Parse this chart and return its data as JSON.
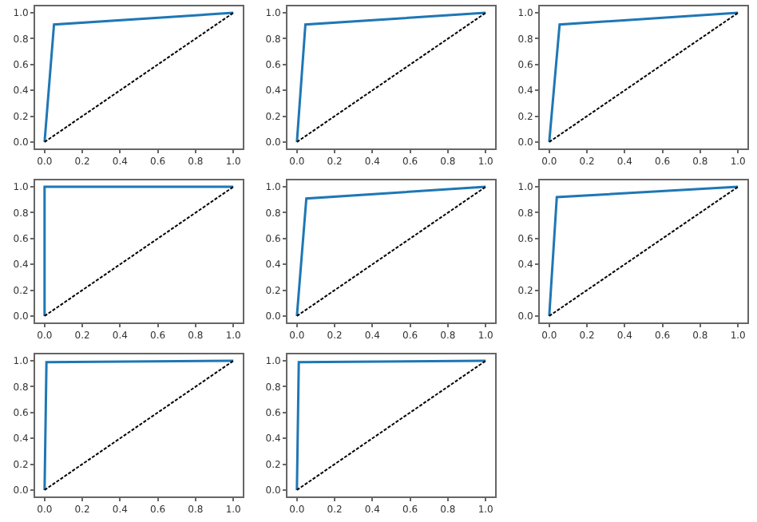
{
  "chart_data": [
    {
      "type": "line",
      "series": [
        {
          "color": "#1f77b4",
          "x": [
            0,
            0.05,
            1
          ],
          "values": [
            0,
            0.91,
            1
          ],
          "line_style": "solid"
        },
        {
          "color": "#000000",
          "x": [
            0,
            1
          ],
          "values": [
            0,
            1
          ],
          "line_style": "dashed"
        }
      ],
      "xlim": [
        -0.05,
        1.05
      ],
      "ylim": [
        -0.05,
        1.05
      ],
      "xticks": [
        {
          "value": 0,
          "label": "0.0"
        },
        {
          "value": 0.2,
          "label": "0.2"
        },
        {
          "value": 0.4,
          "label": "0.4"
        },
        {
          "value": 0.6,
          "label": "0.6"
        },
        {
          "value": 0.8,
          "label": "0.8"
        },
        {
          "value": 1,
          "label": "1.0"
        }
      ],
      "yticks": [
        {
          "value": 0,
          "label": "0.0"
        },
        {
          "value": 0.2,
          "label": "0.2"
        },
        {
          "value": 0.4,
          "label": "0.4"
        },
        {
          "value": 0.6,
          "label": "0.6"
        },
        {
          "value": 0.8,
          "label": "0.8"
        },
        {
          "value": 1,
          "label": "1.0"
        }
      ]
    },
    {
      "type": "line",
      "series": [
        {
          "color": "#1f77b4",
          "x": [
            0,
            0.045,
            1
          ],
          "values": [
            0,
            0.91,
            1
          ],
          "line_style": "solid"
        },
        {
          "color": "#000000",
          "x": [
            0,
            1
          ],
          "values": [
            0,
            1
          ],
          "line_style": "dashed"
        }
      ],
      "xlim": [
        -0.05,
        1.05
      ],
      "ylim": [
        -0.05,
        1.05
      ],
      "xticks": [
        {
          "value": 0,
          "label": "0.0"
        },
        {
          "value": 0.2,
          "label": "0.2"
        },
        {
          "value": 0.4,
          "label": "0.4"
        },
        {
          "value": 0.6,
          "label": "0.6"
        },
        {
          "value": 0.8,
          "label": "0.8"
        },
        {
          "value": 1,
          "label": "1.0"
        }
      ],
      "yticks": [
        {
          "value": 0,
          "label": "0.0"
        },
        {
          "value": 0.2,
          "label": "0.2"
        },
        {
          "value": 0.4,
          "label": "0.4"
        },
        {
          "value": 0.6,
          "label": "0.6"
        },
        {
          "value": 0.8,
          "label": "0.8"
        },
        {
          "value": 1,
          "label": "1.0"
        }
      ]
    },
    {
      "type": "line",
      "series": [
        {
          "color": "#1f77b4",
          "x": [
            0,
            0.055,
            1
          ],
          "values": [
            0,
            0.91,
            1
          ],
          "line_style": "solid"
        },
        {
          "color": "#000000",
          "x": [
            0,
            1
          ],
          "values": [
            0,
            1
          ],
          "line_style": "dashed"
        }
      ],
      "xlim": [
        -0.05,
        1.05
      ],
      "ylim": [
        -0.05,
        1.05
      ],
      "xticks": [
        {
          "value": 0,
          "label": "0.0"
        },
        {
          "value": 0.2,
          "label": "0.2"
        },
        {
          "value": 0.4,
          "label": "0.4"
        },
        {
          "value": 0.6,
          "label": "0.6"
        },
        {
          "value": 0.8,
          "label": "0.8"
        },
        {
          "value": 1,
          "label": "1.0"
        }
      ],
      "yticks": [
        {
          "value": 0,
          "label": "0.0"
        },
        {
          "value": 0.2,
          "label": "0.2"
        },
        {
          "value": 0.4,
          "label": "0.4"
        },
        {
          "value": 0.6,
          "label": "0.6"
        },
        {
          "value": 0.8,
          "label": "0.8"
        },
        {
          "value": 1,
          "label": "1.0"
        }
      ]
    },
    {
      "type": "line",
      "series": [
        {
          "color": "#1f77b4",
          "x": [
            0,
            0,
            1
          ],
          "values": [
            0,
            1,
            1
          ],
          "line_style": "solid"
        },
        {
          "color": "#000000",
          "x": [
            0,
            1
          ],
          "values": [
            0,
            1
          ],
          "line_style": "dashed"
        }
      ],
      "xlim": [
        -0.05,
        1.05
      ],
      "ylim": [
        -0.05,
        1.05
      ],
      "xticks": [
        {
          "value": 0,
          "label": "0.0"
        },
        {
          "value": 0.2,
          "label": "0.2"
        },
        {
          "value": 0.4,
          "label": "0.4"
        },
        {
          "value": 0.6,
          "label": "0.6"
        },
        {
          "value": 0.8,
          "label": "0.8"
        },
        {
          "value": 1,
          "label": "1.0"
        }
      ],
      "yticks": [
        {
          "value": 0,
          "label": "0.0"
        },
        {
          "value": 0.2,
          "label": "0.2"
        },
        {
          "value": 0.4,
          "label": "0.4"
        },
        {
          "value": 0.6,
          "label": "0.6"
        },
        {
          "value": 0.8,
          "label": "0.8"
        },
        {
          "value": 1,
          "label": "1.0"
        }
      ]
    },
    {
      "type": "line",
      "series": [
        {
          "color": "#1f77b4",
          "x": [
            0,
            0.05,
            1
          ],
          "values": [
            0,
            0.91,
            1
          ],
          "line_style": "solid"
        },
        {
          "color": "#000000",
          "x": [
            0,
            1
          ],
          "values": [
            0,
            1
          ],
          "line_style": "dashed"
        }
      ],
      "xlim": [
        -0.05,
        1.05
      ],
      "ylim": [
        -0.05,
        1.05
      ],
      "xticks": [
        {
          "value": 0,
          "label": "0.0"
        },
        {
          "value": 0.2,
          "label": "0.2"
        },
        {
          "value": 0.4,
          "label": "0.4"
        },
        {
          "value": 0.6,
          "label": "0.6"
        },
        {
          "value": 0.8,
          "label": "0.8"
        },
        {
          "value": 1,
          "label": "1.0"
        }
      ],
      "yticks": [
        {
          "value": 0,
          "label": "0.0"
        },
        {
          "value": 0.2,
          "label": "0.2"
        },
        {
          "value": 0.4,
          "label": "0.4"
        },
        {
          "value": 0.6,
          "label": "0.6"
        },
        {
          "value": 0.8,
          "label": "0.8"
        },
        {
          "value": 1,
          "label": "1.0"
        }
      ]
    },
    {
      "type": "line",
      "series": [
        {
          "color": "#1f77b4",
          "x": [
            0,
            0.04,
            1
          ],
          "values": [
            0,
            0.92,
            1
          ],
          "line_style": "solid"
        },
        {
          "color": "#000000",
          "x": [
            0,
            1
          ],
          "values": [
            0,
            1
          ],
          "line_style": "dashed"
        }
      ],
      "xlim": [
        -0.05,
        1.05
      ],
      "ylim": [
        -0.05,
        1.05
      ],
      "xticks": [
        {
          "value": 0,
          "label": "0.0"
        },
        {
          "value": 0.2,
          "label": "0.2"
        },
        {
          "value": 0.4,
          "label": "0.4"
        },
        {
          "value": 0.6,
          "label": "0.6"
        },
        {
          "value": 0.8,
          "label": "0.8"
        },
        {
          "value": 1,
          "label": "1.0"
        }
      ],
      "yticks": [
        {
          "value": 0,
          "label": "0.0"
        },
        {
          "value": 0.2,
          "label": "0.2"
        },
        {
          "value": 0.4,
          "label": "0.4"
        },
        {
          "value": 0.6,
          "label": "0.6"
        },
        {
          "value": 0.8,
          "label": "0.8"
        },
        {
          "value": 1,
          "label": "1.0"
        }
      ]
    },
    {
      "type": "line",
      "series": [
        {
          "color": "#1f77b4",
          "x": [
            0,
            0.01,
            1
          ],
          "values": [
            0,
            0.99,
            1
          ],
          "line_style": "solid"
        },
        {
          "color": "#000000",
          "x": [
            0,
            1
          ],
          "values": [
            0,
            1
          ],
          "line_style": "dashed"
        }
      ],
      "xlim": [
        -0.05,
        1.05
      ],
      "ylim": [
        -0.05,
        1.05
      ],
      "xticks": [
        {
          "value": 0,
          "label": "0.0"
        },
        {
          "value": 0.2,
          "label": "0.2"
        },
        {
          "value": 0.4,
          "label": "0.4"
        },
        {
          "value": 0.6,
          "label": "0.6"
        },
        {
          "value": 0.8,
          "label": "0.8"
        },
        {
          "value": 1,
          "label": "1.0"
        }
      ],
      "yticks": [
        {
          "value": 0,
          "label": "0.0"
        },
        {
          "value": 0.2,
          "label": "0.2"
        },
        {
          "value": 0.4,
          "label": "0.4"
        },
        {
          "value": 0.6,
          "label": "0.6"
        },
        {
          "value": 0.8,
          "label": "0.8"
        },
        {
          "value": 1,
          "label": "1.0"
        }
      ]
    },
    {
      "type": "line",
      "series": [
        {
          "color": "#1f77b4",
          "x": [
            0,
            0.01,
            1
          ],
          "values": [
            0,
            0.99,
            1
          ],
          "line_style": "solid"
        },
        {
          "color": "#000000",
          "x": [
            0,
            1
          ],
          "values": [
            0,
            1
          ],
          "line_style": "dashed"
        }
      ],
      "xlim": [
        -0.05,
        1.05
      ],
      "ylim": [
        -0.05,
        1.05
      ],
      "xticks": [
        {
          "value": 0,
          "label": "0.0"
        },
        {
          "value": 0.2,
          "label": "0.2"
        },
        {
          "value": 0.4,
          "label": "0.4"
        },
        {
          "value": 0.6,
          "label": "0.6"
        },
        {
          "value": 0.8,
          "label": "0.8"
        },
        {
          "value": 1,
          "label": "1.0"
        }
      ],
      "yticks": [
        {
          "value": 0,
          "label": "0.0"
        },
        {
          "value": 0.2,
          "label": "0.2"
        },
        {
          "value": 0.4,
          "label": "0.4"
        },
        {
          "value": 0.6,
          "label": "0.6"
        },
        {
          "value": 0.8,
          "label": "0.8"
        },
        {
          "value": 1,
          "label": "1.0"
        }
      ]
    }
  ]
}
